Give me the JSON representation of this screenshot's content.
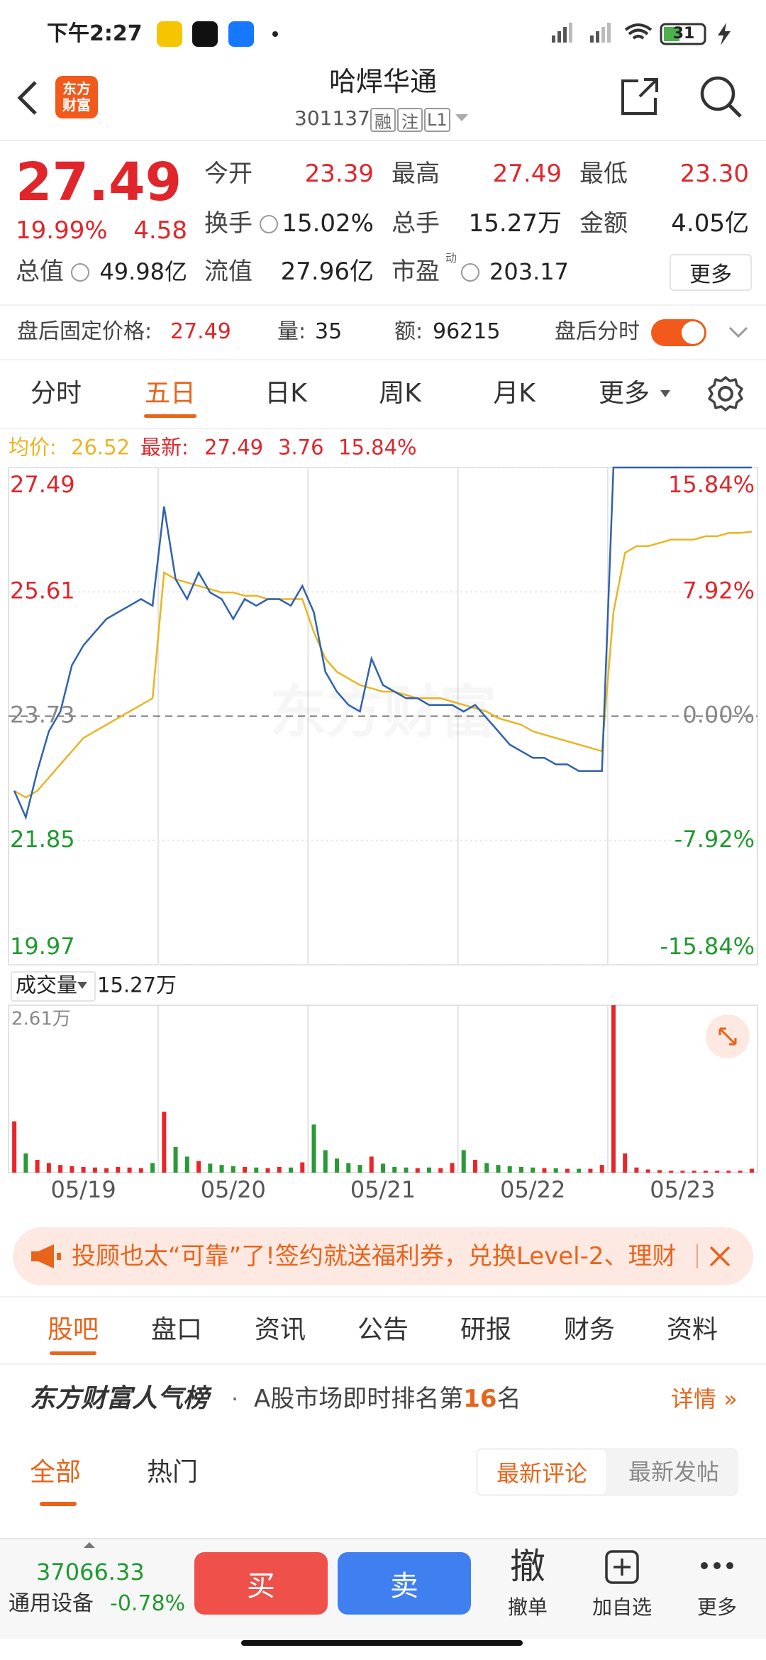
{
  "status_bar": {
    "time": "下午2:27",
    "battery": "31"
  },
  "header": {
    "logo": [
      "东方",
      "财富"
    ],
    "title": "哈焊华通",
    "code": "301137",
    "badges": [
      "融",
      "注",
      "L1"
    ]
  },
  "quote": {
    "price": "27.49",
    "change_pct": "19.99%",
    "change": "4.58",
    "fields": [
      {
        "label": "今开",
        "value": "23.39"
      },
      {
        "label": "最高",
        "value": "27.49"
      },
      {
        "label": "最低",
        "value": "23.30"
      },
      {
        "label": "换手",
        "value": "15.02%"
      },
      {
        "label": "总手",
        "value": "15.27万"
      },
      {
        "label": "金额",
        "value": "4.05亿"
      },
      {
        "label": "总值",
        "value": "49.98亿"
      },
      {
        "label": "流值",
        "value": "27.96亿"
      },
      {
        "label": "市盈",
        "value": "203.17"
      }
    ],
    "pe_tag": "动",
    "more": "更多"
  },
  "after_hours": {
    "label": "盘后固定价格:",
    "price": "27.49",
    "vol_label": "量:",
    "vol": "35",
    "amt_label": "额:",
    "amt": "96215",
    "toggle_label": "盘后分时"
  },
  "period_tabs": [
    "分时",
    "五日",
    "日K",
    "周K",
    "月K",
    "更多"
  ],
  "legend": {
    "avg": "26.52",
    "latest": "27.49",
    "change": "3.76",
    "pct": "15.84%"
  },
  "chart_data": [
    {
      "type": "line",
      "watermark": "东方财富",
      "series": [
        {
          "name": "均价:",
          "color": "#e9b524",
          "values": [
            [
              22.6,
              22.5,
              22.6,
              22.8,
              23.0,
              23.2,
              23.4,
              23.5,
              23.6,
              23.7,
              23.8,
              23.9,
              24.0
            ],
            [
              25.9,
              25.8,
              25.75,
              25.7,
              25.65,
              25.6,
              25.6,
              25.55,
              25.55,
              25.5,
              25.5,
              25.5,
              25.5
            ],
            [
              25.0,
              24.6,
              24.4,
              24.3,
              24.2,
              24.15,
              24.1,
              24.1,
              24.05,
              24.0,
              24.0,
              24.0,
              23.95
            ],
            [
              23.9,
              23.85,
              23.8,
              23.7,
              23.65,
              23.6,
              23.5,
              23.45,
              23.4,
              23.35,
              23.3,
              23.25,
              23.2
            ],
            [
              25.3,
              26.2,
              26.3,
              26.3,
              26.35,
              26.4,
              26.4,
              26.4,
              26.45,
              26.45,
              26.5,
              26.5,
              26.52
            ]
          ]
        },
        {
          "name": "最新:",
          "color": "#2f62ad",
          "values": [
            [
              22.6,
              22.2,
              22.9,
              23.5,
              23.8,
              24.5,
              24.8,
              25.0,
              25.2,
              25.3,
              25.4,
              25.5,
              25.4
            ],
            [
              26.9,
              25.8,
              25.5,
              25.9,
              25.6,
              25.5,
              25.2,
              25.5,
              25.4,
              25.5,
              25.5,
              25.4,
              25.7
            ],
            [
              25.3,
              24.4,
              24.1,
              23.9,
              23.8,
              24.6,
              24.2,
              24.1,
              24.0,
              24.0,
              23.9,
              23.9,
              23.9
            ],
            [
              23.8,
              23.9,
              23.7,
              23.5,
              23.3,
              23.2,
              23.1,
              23.1,
              23.0,
              23.0,
              22.9,
              22.9,
              22.9
            ],
            [
              27.49,
              27.49,
              27.49,
              27.49,
              27.49,
              27.49,
              27.49,
              27.49,
              27.49,
              27.49,
              27.49,
              27.49,
              27.49
            ]
          ]
        }
      ],
      "ylim": [
        19.97,
        27.49
      ],
      "yticks": [
        19.97,
        21.85,
        23.73,
        25.61,
        27.49
      ],
      "y2lim": [
        -15.84,
        15.84
      ],
      "y2ticks": [
        {
          "value": -15.84,
          "label": "-15.84%"
        },
        {
          "value": -7.92,
          "label": "-7.92%"
        },
        {
          "value": 0,
          "label": "0.00%"
        },
        {
          "value": 7.92,
          "label": "7.92%"
        },
        {
          "value": 15.84,
          "label": "15.84%"
        }
      ]
    },
    {
      "type": "bar",
      "categories": [
        "05/19",
        "05/20",
        "05/21",
        "05/22",
        "05/23"
      ],
      "values": [
        [
          8000,
          3000,
          2000,
          1500,
          1200,
          1000,
          900,
          800,
          700,
          900,
          800,
          700,
          1500
        ],
        [
          9500,
          4000,
          2500,
          1800,
          1400,
          1200,
          1000,
          900,
          800,
          700,
          900,
          800,
          1600
        ],
        [
          7500,
          3500,
          2200,
          1500,
          1200,
          2500,
          1400,
          900,
          800,
          700,
          800,
          700,
          1500
        ],
        [
          3500,
          2000,
          1500,
          1200,
          1000,
          900,
          800,
          700,
          700,
          600,
          600,
          600,
          1200
        ],
        [
          26100,
          3000,
          800,
          500,
          400,
          300,
          300,
          300,
          300,
          300,
          300,
          300,
          600
        ]
      ],
      "ylim": [
        0,
        26100
      ],
      "yticks": [
        {
          "value": 26100,
          "label": "2.61万"
        }
      ],
      "up_color": "#e8262a",
      "down_color": "#2a9a36"
    }
  ],
  "volume_header": {
    "label": "成交量",
    "total": "15.27万"
  },
  "banner": {
    "text": "投顾也太“可靠”了!签约就送福利券，兑换Level-2、理财"
  },
  "news_tabs": [
    "股吧",
    "盘口",
    "资讯",
    "公告",
    "研报",
    "财务",
    "资料"
  ],
  "rank": {
    "title": "东方财富人气榜",
    "text": "A股市场即时排名第",
    "rank": "16",
    "suffix": "名",
    "link": "详情"
  },
  "filters": [
    "全部",
    "热门"
  ],
  "sort": [
    "最新评论",
    "最新发帖"
  ],
  "bottom_bar": {
    "index_value": "37066.33",
    "index_name": "通用设备",
    "index_change": "-0.78%",
    "buy": "买",
    "sell": "卖",
    "cancel_icon": "撤",
    "cancel": "撤单",
    "watch": "加自选",
    "more": "更多"
  }
}
